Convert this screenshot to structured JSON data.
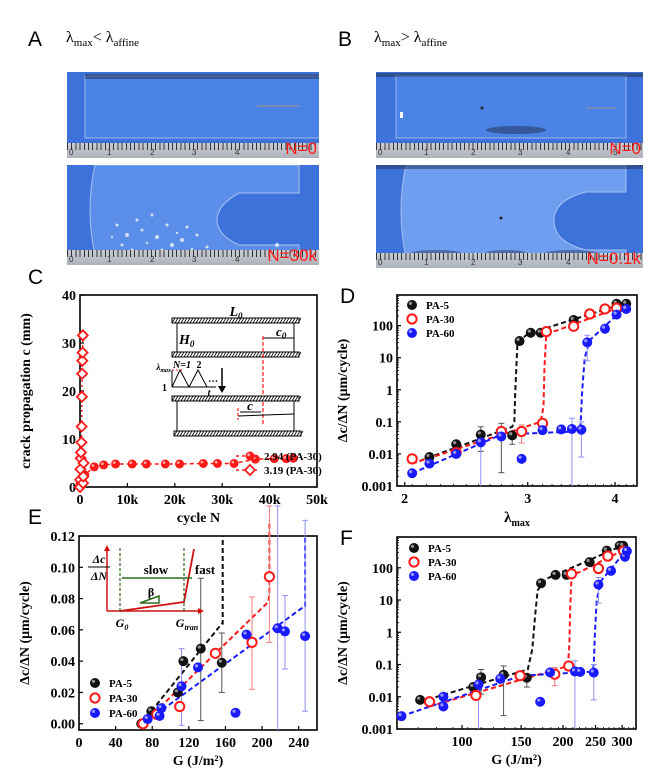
{
  "panels": {
    "A": {
      "label": "A",
      "title_lambda": "λ",
      "title_sub1": "max",
      "title_op": "<",
      "title_sub2": "affine",
      "photos": [
        {
          "n_label": "N=0"
        },
        {
          "n_label": "N=30k"
        }
      ],
      "ruler_numbers": [
        "0",
        "1",
        "2",
        "3",
        "4"
      ]
    },
    "B": {
      "label": "B",
      "title_lambda": "λ",
      "title_sub1": "max",
      "title_op": ">",
      "title_sub2": "affine",
      "photos": [
        {
          "n_label": "N=0"
        },
        {
          "n_label": "N=0.1k"
        }
      ],
      "ruler_numbers": [
        "0",
        "1",
        "2",
        "3",
        "4",
        "5"
      ]
    },
    "C": {
      "label": "C"
    },
    "D": {
      "label": "D"
    },
    "E": {
      "label": "E"
    },
    "F": {
      "label": "F"
    }
  },
  "colors": {
    "PA-5": "#111111",
    "PA-30": "#ff1a1a",
    "PA-60": "#1a1aff",
    "inset_red": "#d01010",
    "inset_green": "#2e6b1e",
    "photo_blue": "#3a6fd8"
  },
  "chart_data": [
    {
      "id": "C",
      "type": "scatter",
      "xlabel": "cycle N",
      "ylabel": "crack propagation c (mm)",
      "xlim": [
        0,
        50000
      ],
      "ylim": [
        0,
        40
      ],
      "xticks": [
        0,
        10000,
        20000,
        30000,
        40000,
        50000
      ],
      "xtick_labels": [
        "0",
        "10k",
        "20k",
        "30k",
        "40k",
        "50k"
      ],
      "yticks": [
        0,
        10,
        20,
        30,
        40
      ],
      "series": [
        {
          "name": "2.94 (PA-30)",
          "marker": "filled-circle",
          "x": [
            0,
            500,
            1000,
            3000,
            5000,
            7500,
            11000,
            14000,
            18000,
            21000,
            26000,
            29000,
            32500,
            37000,
            41000,
            43500,
            45000
          ],
          "y": [
            0.5,
            1.5,
            2.5,
            4.2,
            4.6,
            4.8,
            4.8,
            4.8,
            4.8,
            4.8,
            4.9,
            4.9,
            4.9,
            5.8,
            5.9,
            5.9,
            6.0
          ]
        },
        {
          "name": "3.19 (PA-30)",
          "marker": "open-diamond",
          "x": [
            0,
            50,
            100,
            150,
            200,
            300,
            350,
            400,
            450,
            500,
            550,
            600,
            650,
            700,
            750
          ],
          "y": [
            0,
            1.5,
            3.7,
            6,
            7.2,
            9.3,
            12.6,
            18.8,
            23.6,
            26.3,
            28,
            31.6,
            0.8,
            2.2,
            5
          ]
        }
      ],
      "legend": [
        "2.94 (PA-30)",
        "3.19 (PA-30)"
      ],
      "legend_position": "bottom-right",
      "inset": {
        "labels": {
          "L0": "L",
          "L0_sub": "0",
          "H0": "H",
          "H0_sub": "0",
          "c0": "c",
          "c0_sub": "0",
          "c": "c",
          "lam": "λ",
          "lam_sub": "max",
          "n1": "N=1",
          "n2": "2",
          "dots": "…",
          "one": "1",
          "t": "t"
        }
      }
    },
    {
      "id": "D",
      "type": "scatter",
      "xscale": "log",
      "yscale": "log",
      "xlabel": "λmax",
      "ylabel": "Δc/ΔN (μm/cycle)",
      "xlim": [
        1.95,
        4.3
      ],
      "ylim": [
        0.001,
        900
      ],
      "xticks": [
        2,
        3,
        4
      ],
      "yticks": [
        0.001,
        0.01,
        0.1,
        1,
        10,
        100
      ],
      "ytick_labels": [
        "0.001",
        "0.01",
        "0.1",
        "1",
        "10",
        "100"
      ],
      "series": [
        {
          "name": "PA-5",
          "marker": "filled",
          "x": [
            2.17,
            2.37,
            2.57,
            2.75,
            2.85,
            2.92,
            3.03,
            3.13,
            3.49,
            4.02,
            4.15
          ],
          "y": [
            0.008,
            0.02,
            0.04,
            0.045,
            0.038,
            33,
            60,
            60,
            150,
            480,
            480
          ],
          "err": [
            [
              2.57,
              0.012,
              0.07
            ],
            [
              2.75,
              0.0026,
              0.09
            ],
            [
              2.85,
              0.02,
              0.05
            ]
          ]
        },
        {
          "name": "PA-30",
          "marker": "open",
          "x": [
            2.05,
            2.37,
            2.75,
            2.94,
            3.15,
            3.19,
            3.49,
            3.68,
            3.87,
            4.02
          ],
          "y": [
            0.007,
            0.011,
            0.05,
            0.05,
            0.09,
            65,
            95,
            230,
            330,
            350
          ],
          "err": [
            [
              2.94,
              0.022,
              0.08
            ]
          ]
        },
        {
          "name": "PA-60",
          "marker": "filled",
          "x": [
            2.05,
            2.17,
            2.37,
            2.57,
            2.75,
            2.94,
            3.15,
            3.35,
            3.47,
            3.58,
            3.65,
            3.87,
            4.02,
            4.15
          ],
          "y": [
            0.0025,
            0.005,
            0.01,
            0.023,
            0.035,
            0.007,
            0.055,
            0.058,
            0.06,
            0.057,
            30,
            80,
            220,
            330
          ],
          "err": [
            [
              2.57,
              0.001,
              0.05
            ],
            [
              3.47,
              0.001,
              0.13
            ],
            [
              3.58,
              0.008,
              0.1
            ],
            [
              3.65,
              8,
              50
            ]
          ]
        }
      ],
      "fits": [
        {
          "name": "PA-5",
          "x": [
            2.1,
            2.85,
            2.87,
            2.88,
            2.9,
            3.0,
            4.15
          ],
          "y": [
            0.006,
            0.07,
            0.1,
            1,
            30,
            55,
            520
          ]
        },
        {
          "name": "PA-30",
          "x": [
            2.05,
            3.13,
            3.16,
            3.17,
            3.19,
            3.3,
            4.1
          ],
          "y": [
            0.005,
            0.1,
            0.3,
            5,
            60,
            70,
            400
          ]
        },
        {
          "name": "PA-60",
          "x": [
            2.05,
            2.75,
            3.5,
            3.57,
            3.59,
            3.62,
            3.68,
            4.15
          ],
          "y": [
            0.0025,
            0.04,
            0.05,
            0.08,
            1,
            10,
            35,
            400
          ]
        }
      ],
      "legend": [
        "PA-5",
        "PA-30",
        "PA-60"
      ],
      "legend_position": "top-left"
    },
    {
      "id": "E",
      "type": "scatter",
      "xlabel": "G (J/m²)",
      "ylabel": "Δc/ΔN (μm/cycle)",
      "xlim": [
        0,
        260
      ],
      "ylim": [
        -0.004,
        0.12
      ],
      "xticks": [
        0,
        40,
        80,
        120,
        160,
        200,
        240
      ],
      "yticks": [
        0.0,
        0.02,
        0.04,
        0.06,
        0.08,
        0.1,
        0.12
      ],
      "ytick_labels": [
        "0.00",
        "0.02",
        "0.04",
        "0.06",
        "0.08",
        "0.10",
        "0.12"
      ],
      "series": [
        {
          "name": "PA-5",
          "marker": "filled",
          "x": [
            68,
            79,
            108,
            114,
            133,
            156
          ],
          "y": [
            0.0,
            0.008,
            0.02,
            0.04,
            0.048,
            0.039
          ],
          "err": [
            [
              133,
              0.002,
              0.093
            ],
            [
              156,
              0.02,
              0.058
            ]
          ]
        },
        {
          "name": "PA-30",
          "marker": "open",
          "x": [
            70,
            85,
            110,
            149,
            189,
            208
          ],
          "y": [
            0.0,
            0.006,
            0.011,
            0.045,
            0.052,
            0.094
          ],
          "err": [
            [
              189,
              0.022,
              0.081
            ],
            [
              208,
              0.052,
              0.14
            ]
          ]
        },
        {
          "name": "PA-60",
          "marker": "filled",
          "x": [
            75,
            88,
            90,
            112,
            130,
            171,
            183,
            217,
            225,
            247
          ],
          "y": [
            0.003,
            0.005,
            0.01,
            0.024,
            0.036,
            0.007,
            0.057,
            0.061,
            0.059,
            0.056
          ],
          "err": [
            [
              112,
              -0.001,
              0.048
            ],
            [
              217,
              -0.004,
              0.14
            ],
            [
              225,
              0.035,
              0.082
            ],
            [
              247,
              0.008,
              0.13
            ]
          ]
        }
      ],
      "fits": [
        {
          "name": "PA-5",
          "x": [
            68,
            156,
            157,
            157
          ],
          "y": [
            0.0,
            0.064,
            0.064,
            0.12
          ]
        },
        {
          "name": "PA-30",
          "x": [
            70,
            207,
            208,
            208
          ],
          "y": [
            0.0,
            0.078,
            0.085,
            0.13
          ]
        },
        {
          "name": "PA-60",
          "x": [
            70,
            246,
            247,
            247
          ],
          "y": [
            0.0,
            0.075,
            0.075,
            0.12
          ]
        }
      ],
      "legend": [
        "PA-5",
        "PA-30",
        "PA-60"
      ],
      "legend_position": "bottom-left",
      "inset": {
        "ylabel_top": "Δc",
        "ylabel_bot": "ΔN",
        "slow": "slow",
        "fast": "fast",
        "beta": "β",
        "g0": "G",
        "g0_sub": "0",
        "gtran": "G",
        "gtran_sub": "tran"
      }
    },
    {
      "id": "F",
      "type": "scatter",
      "xscale": "log",
      "yscale": "log",
      "xlabel": "G (J/m²)",
      "ylabel": "Δc/ΔN (μm/cycle)",
      "xlim": [
        64,
        330
      ],
      "ylim": [
        0.001,
        900
      ],
      "xticks": [
        100,
        150,
        200,
        250,
        300
      ],
      "yticks": [
        0.001,
        0.01,
        0.1,
        1,
        10,
        100
      ],
      "ytick_labels": [
        "0.001",
        "0.01",
        "0.1",
        "1",
        "10",
        "100"
      ],
      "series": [
        {
          "name": "PA-5",
          "marker": "filled",
          "x": [
            75,
            108,
            114,
            133,
            156,
            172,
            190,
            205,
            240,
            270,
            295,
            302
          ],
          "y": [
            0.008,
            0.02,
            0.04,
            0.048,
            0.039,
            33,
            60,
            60,
            150,
            340,
            480,
            480
          ],
          "err": [
            [
              114,
              0.012,
              0.07
            ],
            [
              133,
              0.0026,
              0.09
            ],
            [
              156,
              0.02,
              0.05
            ]
          ]
        },
        {
          "name": "PA-30",
          "marker": "open",
          "x": [
            80,
            110,
            149,
            189,
            208,
            212,
            255,
            272,
            303
          ],
          "y": [
            0.007,
            0.011,
            0.045,
            0.05,
            0.09,
            65,
            95,
            230,
            330
          ],
          "err": [
            [
              189,
              0.022,
              0.08
            ]
          ]
        },
        {
          "name": "PA-60",
          "marker": "filled",
          "x": [
            66,
            88,
            88,
            112,
            130,
            171,
            183,
            217,
            225,
            247,
            255,
            278,
            306,
            310
          ],
          "y": [
            0.0025,
            0.005,
            0.01,
            0.024,
            0.036,
            0.007,
            0.057,
            0.061,
            0.059,
            0.056,
            30,
            80,
            220,
            330
          ],
          "err": [
            [
              112,
              0.001,
              0.05
            ],
            [
              217,
              0.001,
              0.13
            ],
            [
              247,
              0.008,
              0.1
            ],
            [
              255,
              8,
              50
            ]
          ]
        }
      ],
      "fits": [
        {
          "name": "PA-5",
          "x": [
            75,
            157,
            162,
            165,
            168,
            178,
            305
          ],
          "y": [
            0.007,
            0.07,
            0.3,
            3,
            20,
            45,
            520
          ]
        },
        {
          "name": "PA-30",
          "x": [
            80,
            207,
            209,
            210,
            212,
            225,
            310
          ],
          "y": [
            0.005,
            0.09,
            0.5,
            5,
            60,
            75,
            400
          ]
        },
        {
          "name": "PA-60",
          "x": [
            66,
            150,
            245,
            247,
            249,
            252,
            260,
            312
          ],
          "y": [
            0.0025,
            0.045,
            0.06,
            0.1,
            1,
            10,
            40,
            400
          ]
        }
      ],
      "legend": [
        "PA-5",
        "PA-30",
        "PA-60"
      ],
      "legend_position": "top-left"
    }
  ]
}
